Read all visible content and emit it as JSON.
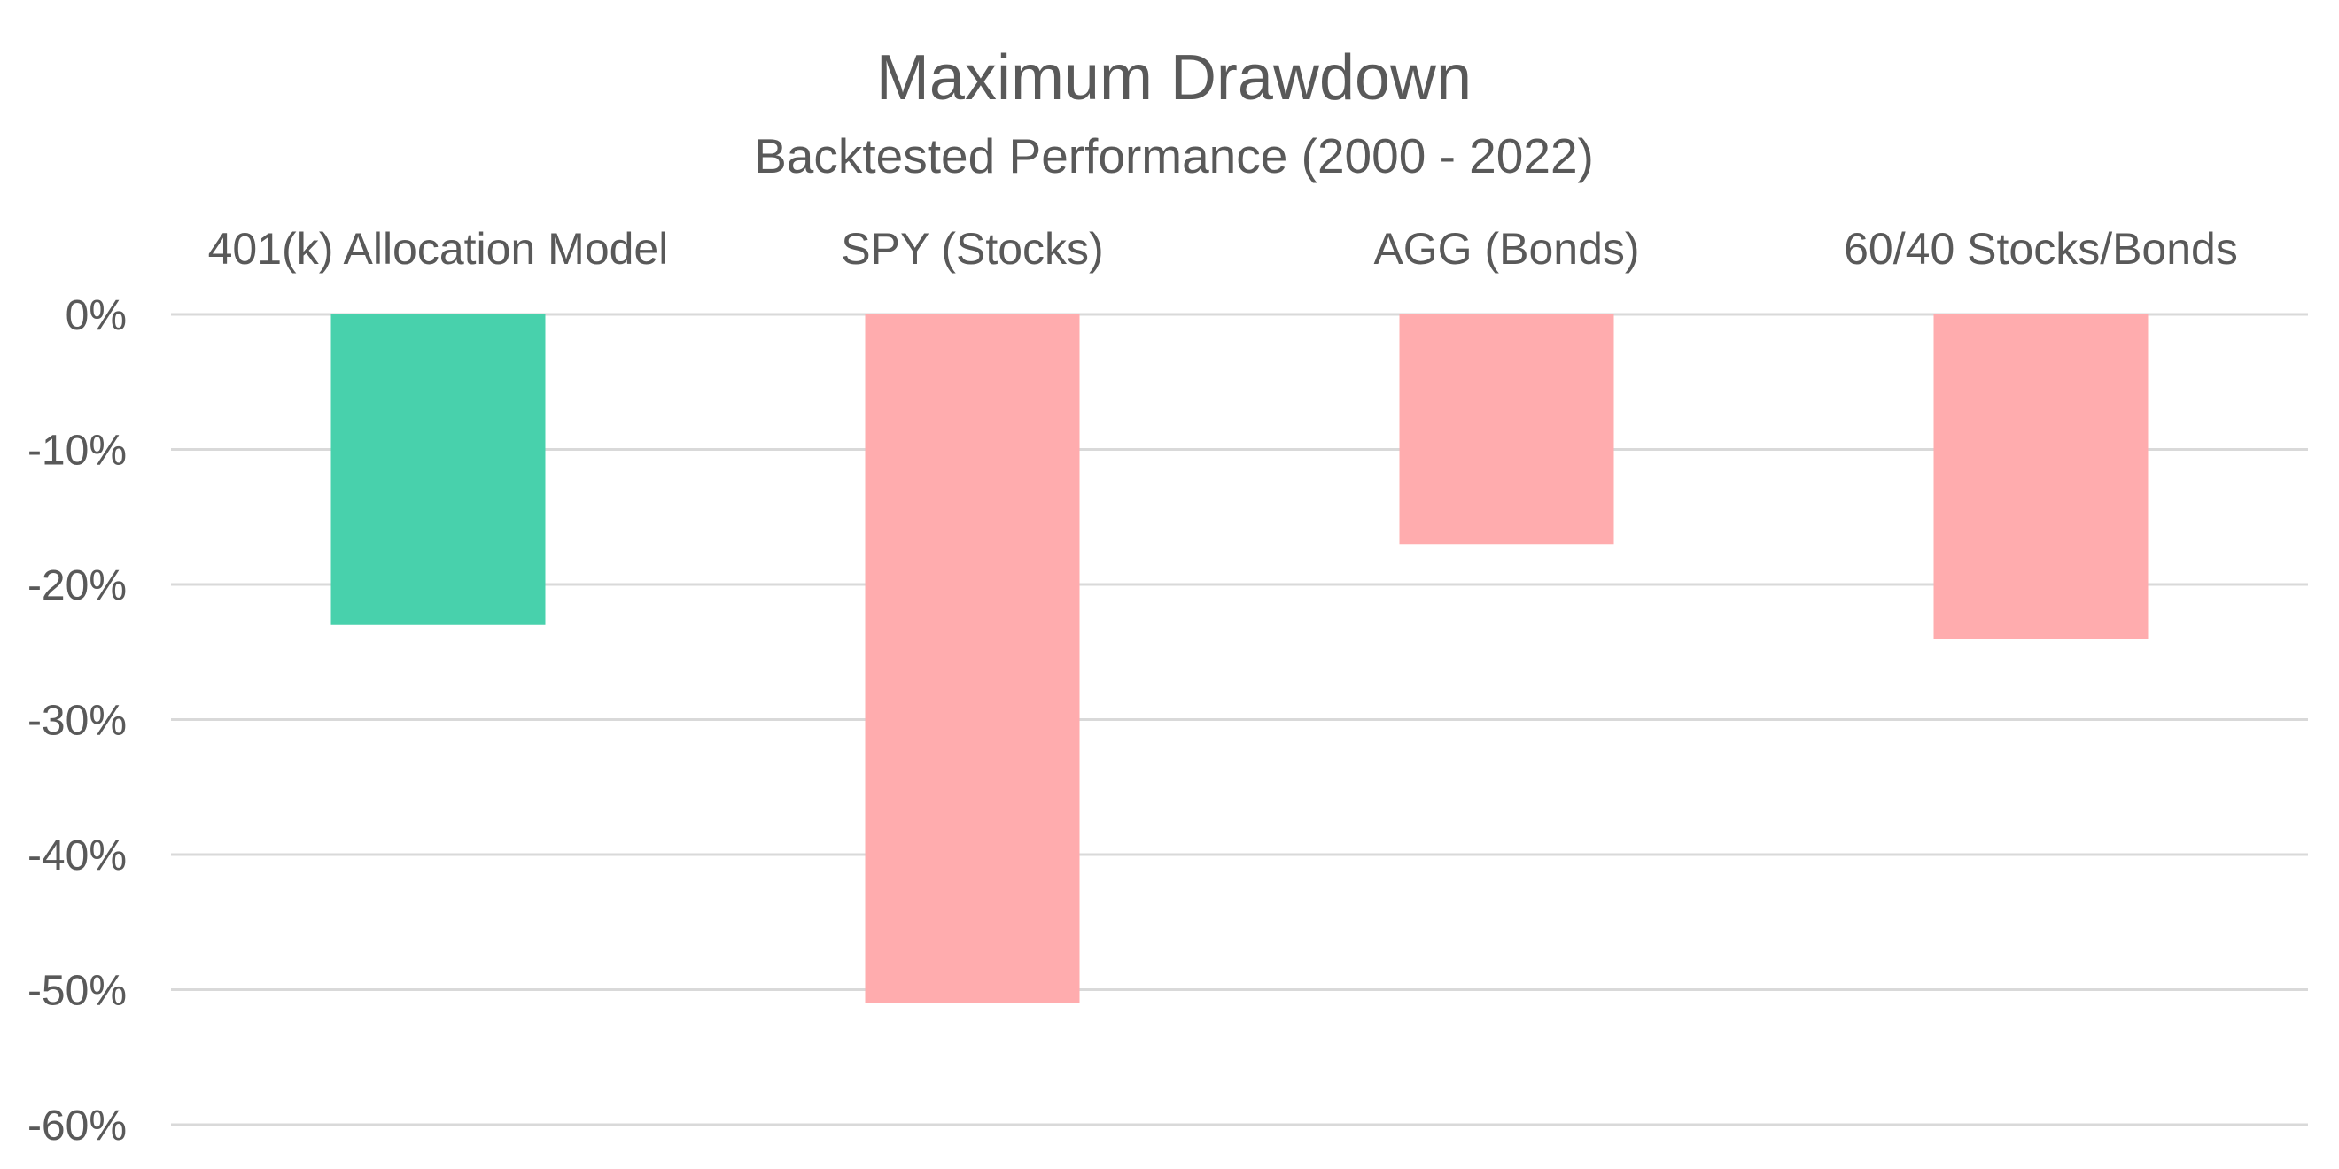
{
  "chart_data": {
    "type": "bar",
    "title": "Maximum Drawdown",
    "subtitle": "Backtested Performance (2000 - 2022)",
    "xlabel": "",
    "ylabel": "",
    "categories": [
      "401(k) Allocation Model",
      "SPY (Stocks)",
      "AGG (Bonds)",
      "60/40 Stocks/Bonds"
    ],
    "values": [
      -23,
      -51,
      -17,
      -24
    ],
    "bar_colors": [
      "#48d1ac",
      "#ffacae",
      "#ffacae",
      "#ffacae"
    ],
    "ylim": [
      -60,
      0
    ],
    "yticks": [
      0,
      -10,
      -20,
      -30,
      -40,
      -50,
      -60
    ],
    "ytick_labels": [
      "0%",
      "-10%",
      "-20%",
      "-30%",
      "-40%",
      "-50%",
      "-60%"
    ],
    "category_labels_position": "top",
    "grid": true,
    "legend": "none"
  }
}
